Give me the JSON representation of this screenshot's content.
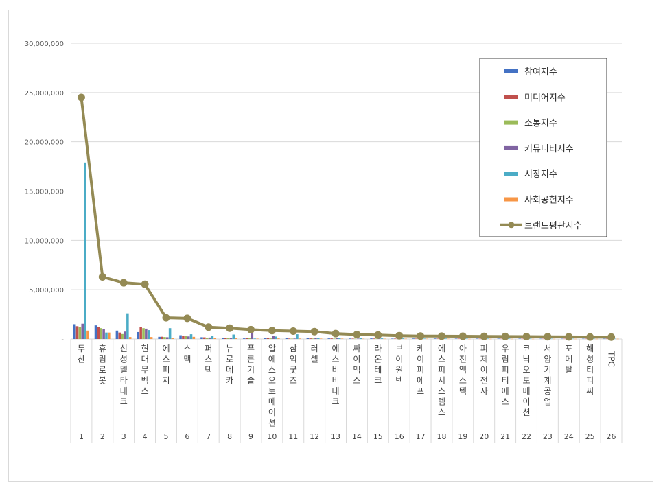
{
  "chart_data": {
    "type": "bar+line",
    "ylim": [
      0,
      30000000
    ],
    "ytick_labels": [
      "-",
      "5,000,000",
      "10,000,000",
      "15,000,000",
      "20,000,000",
      "25,000,000",
      "30,000,000"
    ],
    "ytick_values": [
      0,
      5000000,
      10000000,
      15000000,
      20000000,
      25000000,
      30000000
    ],
    "grid": true,
    "legend_position": "top-right",
    "ranks": [
      "1",
      "2",
      "3",
      "4",
      "5",
      "6",
      "7",
      "8",
      "9",
      "10",
      "11",
      "12",
      "13",
      "14",
      "15",
      "16",
      "17",
      "18",
      "19",
      "20",
      "21",
      "22",
      "23",
      "24",
      "25",
      "26"
    ],
    "categories": [
      "두산",
      "휴림로봇",
      "신성델타테크",
      "현대무벡스",
      "에스피지",
      "스맥",
      "퍼스텍",
      "뉴로메카",
      "푸른기술",
      "알에스오토메이션",
      "삼익굿즈",
      "러셀",
      "에스비비테크",
      "싸이맥스",
      "라온테크",
      "브이원텍",
      "케이피에프",
      "에스피시스템스",
      "아진엑스텍",
      "피제이전자",
      "우림피티에스",
      "코닉오토메이션",
      "서암기계공업",
      "포메탈",
      "해성티피씨",
      "TPC"
    ],
    "series": [
      {
        "name": "참여지수",
        "type": "bar",
        "color": "#4472c4",
        "values": [
          1500000,
          1380000,
          850000,
          700000,
          220000,
          380000,
          180000,
          140000,
          60000,
          90000,
          70000,
          110000,
          60000,
          50000,
          60000,
          40000,
          50000,
          50000,
          40000,
          40000,
          40000,
          40000,
          30000,
          30000,
          30000,
          30000
        ]
      },
      {
        "name": "미디어지수",
        "type": "bar",
        "color": "#c0504d",
        "values": [
          1300000,
          1250000,
          650000,
          1200000,
          230000,
          340000,
          170000,
          120000,
          80000,
          140000,
          50000,
          60000,
          60000,
          40000,
          50000,
          40000,
          40000,
          40000,
          40000,
          30000,
          30000,
          30000,
          30000,
          30000,
          30000,
          30000
        ]
      },
      {
        "name": "소통지수",
        "type": "bar",
        "color": "#9bbb59",
        "values": [
          1200000,
          1100000,
          500000,
          1100000,
          200000,
          300000,
          120000,
          80000,
          70000,
          60000,
          40000,
          50000,
          40000,
          30000,
          40000,
          30000,
          30000,
          30000,
          30000,
          30000,
          20000,
          20000,
          20000,
          20000,
          20000,
          20000
        ]
      },
      {
        "name": "커뮤니티지수",
        "type": "bar",
        "color": "#8064a2",
        "values": [
          1550000,
          1000000,
          750000,
          1050000,
          180000,
          260000,
          150000,
          110000,
          700000,
          300000,
          50000,
          90000,
          70000,
          40000,
          50000,
          40000,
          40000,
          40000,
          30000,
          30000,
          30000,
          30000,
          20000,
          20000,
          20000,
          20000
        ]
      },
      {
        "name": "시장지수",
        "type": "bar",
        "color": "#4bacc6",
        "values": [
          17900000,
          650000,
          2600000,
          900000,
          1100000,
          480000,
          300000,
          450000,
          50000,
          250000,
          480000,
          80000,
          120000,
          80000,
          60000,
          60000,
          40000,
          50000,
          40000,
          40000,
          40000,
          40000,
          30000,
          30000,
          30000,
          30000
        ]
      },
      {
        "name": "사회공헌지수",
        "type": "bar",
        "color": "#f79646",
        "values": [
          850000,
          650000,
          200000,
          200000,
          110000,
          220000,
          80000,
          70000,
          40000,
          60000,
          50000,
          40000,
          40000,
          30000,
          30000,
          30000,
          30000,
          30000,
          20000,
          20000,
          20000,
          20000,
          20000,
          20000,
          20000,
          20000
        ]
      },
      {
        "name": "브랜드평판지수",
        "type": "line",
        "color": "#948a54",
        "values": [
          24500000,
          6300000,
          5700000,
          5550000,
          2150000,
          2100000,
          1200000,
          1100000,
          950000,
          850000,
          800000,
          750000,
          550000,
          450000,
          400000,
          330000,
          300000,
          290000,
          280000,
          260000,
          250000,
          240000,
          230000,
          220000,
          200000,
          190000
        ]
      }
    ]
  }
}
